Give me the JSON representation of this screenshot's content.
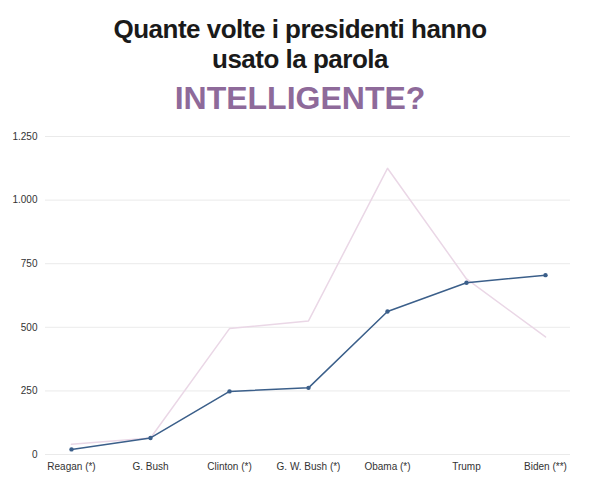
{
  "chart_data": {
    "type": "line",
    "title": "Quante volte i presidenti hanno usato la parola",
    "subtitle": "INTELLIGENTE?",
    "categories": [
      "Reagan (*)",
      "G. Bush",
      "Clinton (*)",
      "G. W. Bush (*)",
      "Obama (*)",
      "Trump",
      "Biden (**)"
    ],
    "series": [
      {
        "color": "#ead7e6",
        "marker": "none",
        "values": [
          40,
          65,
          495,
          525,
          1125,
          690,
          462
        ]
      },
      {
        "color": "#3b5f8a",
        "marker": "circle",
        "values": [
          20,
          65,
          248,
          262,
          562,
          675,
          705
        ]
      }
    ],
    "ylim": [
      0,
      1250
    ],
    "yticks": [
      0,
      250,
      500,
      750,
      {
        "value": 1000,
        "label": "1.000"
      },
      {
        "value": 1250,
        "label": "1.250"
      }
    ],
    "grid": true
  }
}
